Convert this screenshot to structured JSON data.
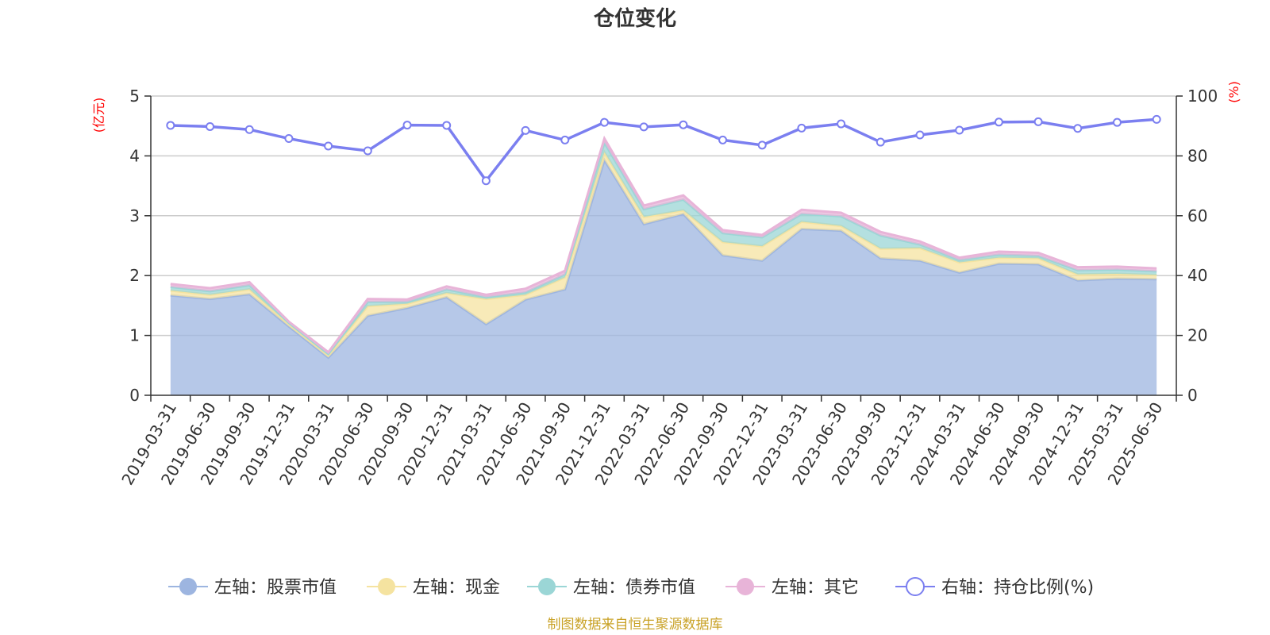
{
  "chart_data": {
    "type": "area",
    "title": "仓位变化",
    "left_axis_unit": "(亿元)",
    "right_axis_unit": "(%)",
    "ylim_left": [
      0,
      5
    ],
    "ylim_right": [
      0,
      100
    ],
    "left_ticks": [
      "0",
      "1",
      "2",
      "3",
      "4",
      "5"
    ],
    "right_ticks": [
      "0",
      "20",
      "40",
      "60",
      "80",
      "100"
    ],
    "grid": true,
    "legend_position": "bottom",
    "categories": [
      "2019-03-31",
      "2019-06-30",
      "2019-09-30",
      "2019-12-31",
      "2020-03-31",
      "2020-06-30",
      "2020-09-30",
      "2020-12-31",
      "2021-03-31",
      "2021-06-30",
      "2021-09-30",
      "2021-12-31",
      "2022-03-31",
      "2022-06-30",
      "2022-09-30",
      "2022-12-31",
      "2023-03-31",
      "2023-06-30",
      "2023-09-30",
      "2023-12-31",
      "2024-03-31",
      "2024-06-30",
      "2024-09-30",
      "2024-12-31",
      "2025-03-31",
      "2025-06-30"
    ],
    "series": [
      {
        "name": "左轴：股票市值",
        "axis": "left",
        "kind": "area",
        "color": "#9db5e0",
        "values": [
          1.67,
          1.61,
          1.69,
          1.15,
          0.63,
          1.33,
          1.46,
          1.64,
          1.19,
          1.6,
          1.77,
          3.93,
          2.86,
          3.03,
          2.34,
          2.25,
          2.78,
          2.75,
          2.29,
          2.25,
          2.05,
          2.2,
          2.19,
          1.92,
          1.95,
          1.94
        ]
      },
      {
        "name": "左轴：现金",
        "axis": "left",
        "kind": "area",
        "color": "#f5e3a0",
        "values": [
          0.08,
          0.07,
          0.08,
          0.04,
          0.04,
          0.16,
          0.07,
          0.07,
          0.42,
          0.08,
          0.2,
          0.13,
          0.12,
          0.06,
          0.22,
          0.24,
          0.12,
          0.08,
          0.16,
          0.21,
          0.17,
          0.1,
          0.1,
          0.1,
          0.08,
          0.07
        ]
      },
      {
        "name": "左轴：债券市值",
        "axis": "left",
        "kind": "area",
        "color": "#9bd6d6",
        "values": [
          0.06,
          0.06,
          0.07,
          0.02,
          0.02,
          0.07,
          0.03,
          0.06,
          0.03,
          0.04,
          0.05,
          0.16,
          0.13,
          0.18,
          0.15,
          0.15,
          0.13,
          0.16,
          0.22,
          0.06,
          0.04,
          0.05,
          0.04,
          0.07,
          0.07,
          0.06
        ]
      },
      {
        "name": "左轴：其它",
        "axis": "left",
        "kind": "area",
        "color": "#e8b4d8",
        "values": [
          0.05,
          0.05,
          0.05,
          0.02,
          0.03,
          0.05,
          0.04,
          0.05,
          0.04,
          0.06,
          0.06,
          0.07,
          0.06,
          0.07,
          0.05,
          0.04,
          0.07,
          0.06,
          0.06,
          0.05,
          0.04,
          0.05,
          0.05,
          0.05,
          0.05,
          0.05
        ]
      },
      {
        "name": "右轴：持仓比例(%)",
        "axis": "right",
        "kind": "line",
        "color": "#7b7ff0",
        "values": [
          90.2,
          89.8,
          88.8,
          85.8,
          83.3,
          81.7,
          90.3,
          90.2,
          71.7,
          88.5,
          85.3,
          91.2,
          89.7,
          90.4,
          85.3,
          83.6,
          89.3,
          90.7,
          84.6,
          87.0,
          88.6,
          91.3,
          91.4,
          89.2,
          91.2,
          92.2
        ]
      }
    ]
  },
  "source_note": "制图数据来自恒生聚源数据库"
}
